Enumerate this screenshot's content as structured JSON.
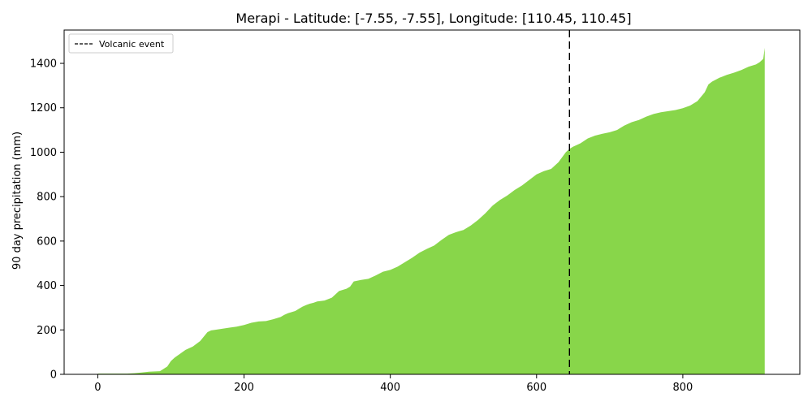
{
  "chart_data": {
    "type": "area",
    "title": "Merapi - Latitude: [-7.55, -7.55], Longitude: [110.45, 110.45]",
    "xlabel": "",
    "ylabel": "90 day precipitation (mm)",
    "xlim": [
      -46,
      960
    ],
    "ylim": [
      0,
      1550
    ],
    "x_ticks": [
      0,
      200,
      400,
      600,
      800
    ],
    "y_ticks": [
      0,
      200,
      400,
      600,
      800,
      1000,
      1200,
      1400
    ],
    "grid": false,
    "legend_position": "top-left",
    "series": [
      {
        "name": "",
        "color": "#88d64a",
        "x": [
          0,
          20,
          40,
          50,
          60,
          70,
          85,
          95,
          100,
          105,
          120,
          130,
          140,
          150,
          155,
          160,
          170,
          180,
          190,
          200,
          210,
          220,
          230,
          240,
          250,
          255,
          260,
          270,
          275,
          280,
          285,
          290,
          295,
          300,
          310,
          320,
          330,
          340,
          345,
          350,
          360,
          370,
          380,
          390,
          400,
          410,
          420,
          430,
          440,
          450,
          460,
          470,
          480,
          490,
          495,
          500,
          510,
          520,
          530,
          540,
          550,
          560,
          570,
          580,
          590,
          600,
          610,
          620,
          630,
          640,
          645,
          650,
          660,
          670,
          680,
          690,
          700,
          710,
          720,
          730,
          740,
          750,
          760,
          770,
          780,
          790,
          800,
          810,
          820,
          830,
          835,
          840,
          850,
          860,
          870,
          880,
          890,
          900,
          905,
          910,
          912
        ],
        "values": [
          3,
          3,
          3,
          5,
          8,
          12,
          14,
          35,
          60,
          75,
          110,
          125,
          150,
          190,
          198,
          200,
          205,
          210,
          215,
          222,
          232,
          238,
          240,
          248,
          258,
          268,
          275,
          285,
          295,
          305,
          312,
          318,
          322,
          328,
          332,
          345,
          375,
          385,
          395,
          418,
          425,
          430,
          445,
          462,
          470,
          485,
          505,
          525,
          548,
          565,
          580,
          605,
          628,
          640,
          645,
          650,
          670,
          695,
          725,
          760,
          785,
          805,
          830,
          850,
          875,
          900,
          915,
          925,
          955,
          1000,
          1015,
          1025,
          1040,
          1062,
          1075,
          1083,
          1090,
          1100,
          1120,
          1135,
          1145,
          1160,
          1172,
          1180,
          1185,
          1190,
          1198,
          1210,
          1230,
          1270,
          1305,
          1318,
          1335,
          1348,
          1358,
          1370,
          1385,
          1395,
          1405,
          1420,
          1470
        ]
      }
    ],
    "annotations": [
      {
        "type": "vline",
        "x": 645,
        "label": "Volcanic event",
        "color": "#000000",
        "style": "dashed"
      }
    ]
  }
}
